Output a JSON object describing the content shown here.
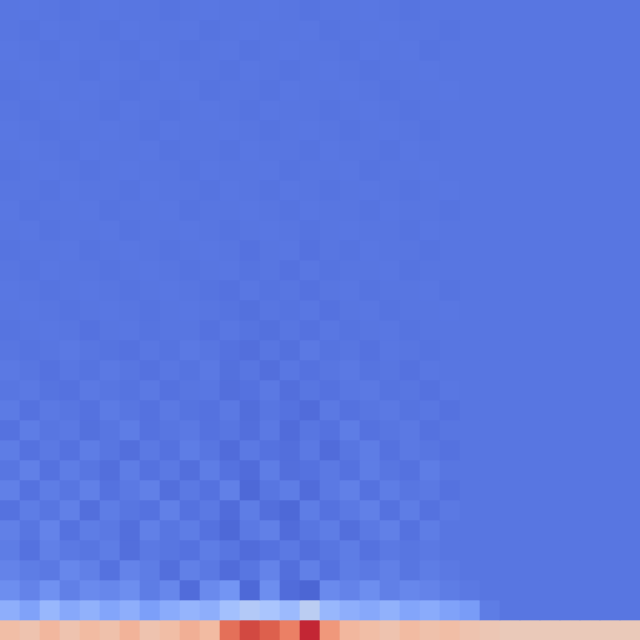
{
  "chart_data": {
    "type": "heatmap",
    "tick_labels": false,
    "color_range": [
      0,
      1
    ],
    "cells": [
      [
        0.13,
        0.135,
        0.13,
        0.125,
        0.13,
        0.135,
        0.13,
        0.13,
        0.125,
        0.13,
        0.135,
        0.13,
        0.13,
        0.135,
        0.13,
        0.125,
        0.13,
        0.13,
        0.135,
        0.13,
        0.125,
        0.13,
        0.13,
        0.13,
        0.13,
        0.13,
        0.13,
        0.13,
        0.13,
        0.13,
        0.13,
        0.13
      ],
      [
        0.13,
        0.125,
        0.135,
        0.13,
        0.13,
        0.125,
        0.135,
        0.13,
        0.13,
        0.135,
        0.125,
        0.13,
        0.135,
        0.13,
        0.13,
        0.135,
        0.125,
        0.13,
        0.13,
        0.135,
        0.13,
        0.13,
        0.125,
        0.13,
        0.13,
        0.13,
        0.13,
        0.13,
        0.13,
        0.13,
        0.13,
        0.13
      ],
      [
        0.135,
        0.13,
        0.125,
        0.135,
        0.13,
        0.13,
        0.125,
        0.135,
        0.13,
        0.125,
        0.13,
        0.135,
        0.125,
        0.13,
        0.135,
        0.13,
        0.13,
        0.125,
        0.135,
        0.13,
        0.135,
        0.125,
        0.13,
        0.13,
        0.13,
        0.13,
        0.13,
        0.13,
        0.13,
        0.13,
        0.13,
        0.13
      ],
      [
        0.13,
        0.135,
        0.13,
        0.13,
        0.125,
        0.135,
        0.13,
        0.125,
        0.135,
        0.13,
        0.13,
        0.125,
        0.135,
        0.13,
        0.125,
        0.13,
        0.135,
        0.13,
        0.125,
        0.13,
        0.13,
        0.135,
        0.13,
        0.13,
        0.13,
        0.13,
        0.13,
        0.13,
        0.13,
        0.13,
        0.13,
        0.13
      ],
      [
        0.125,
        0.13,
        0.135,
        0.13,
        0.135,
        0.13,
        0.125,
        0.13,
        0.13,
        0.135,
        0.125,
        0.13,
        0.13,
        0.125,
        0.135,
        0.13,
        0.13,
        0.135,
        0.13,
        0.125,
        0.13,
        0.13,
        0.135,
        0.13,
        0.13,
        0.13,
        0.13,
        0.13,
        0.13,
        0.13,
        0.13,
        0.13
      ],
      [
        0.13,
        0.125,
        0.13,
        0.135,
        0.13,
        0.125,
        0.135,
        0.13,
        0.125,
        0.13,
        0.135,
        0.13,
        0.125,
        0.135,
        0.13,
        0.13,
        0.125,
        0.13,
        0.135,
        0.13,
        0.125,
        0.13,
        0.13,
        0.13,
        0.13,
        0.13,
        0.13,
        0.13,
        0.13,
        0.13,
        0.13,
        0.13
      ],
      [
        0.135,
        0.13,
        0.125,
        0.13,
        0.13,
        0.135,
        0.13,
        0.125,
        0.135,
        0.13,
        0.13,
        0.135,
        0.13,
        0.125,
        0.13,
        0.135,
        0.13,
        0.125,
        0.13,
        0.135,
        0.13,
        0.125,
        0.13,
        0.13,
        0.13,
        0.13,
        0.13,
        0.13,
        0.13,
        0.13,
        0.13,
        0.13
      ],
      [
        0.13,
        0.135,
        0.13,
        0.125,
        0.135,
        0.13,
        0.13,
        0.135,
        0.125,
        0.13,
        0.13,
        0.125,
        0.135,
        0.13,
        0.13,
        0.125,
        0.135,
        0.13,
        0.13,
        0.125,
        0.135,
        0.13,
        0.13,
        0.13,
        0.13,
        0.13,
        0.13,
        0.13,
        0.13,
        0.13,
        0.13,
        0.13
      ],
      [
        0.125,
        0.13,
        0.135,
        0.13,
        0.125,
        0.13,
        0.135,
        0.13,
        0.13,
        0.125,
        0.135,
        0.13,
        0.13,
        0.135,
        0.125,
        0.13,
        0.13,
        0.135,
        0.125,
        0.13,
        0.13,
        0.135,
        0.13,
        0.13,
        0.13,
        0.13,
        0.13,
        0.13,
        0.13,
        0.13,
        0.13,
        0.13
      ],
      [
        0.13,
        0.13,
        0.125,
        0.135,
        0.13,
        0.13,
        0.125,
        0.135,
        0.13,
        0.13,
        0.125,
        0.135,
        0.13,
        0.125,
        0.135,
        0.13,
        0.125,
        0.13,
        0.135,
        0.13,
        0.125,
        0.13,
        0.135,
        0.13,
        0.13,
        0.13,
        0.13,
        0.13,
        0.13,
        0.13,
        0.13,
        0.13
      ],
      [
        0.135,
        0.125,
        0.13,
        0.13,
        0.135,
        0.125,
        0.13,
        0.13,
        0.135,
        0.125,
        0.13,
        0.13,
        0.135,
        0.13,
        0.125,
        0.135,
        0.13,
        0.13,
        0.125,
        0.135,
        0.13,
        0.13,
        0.125,
        0.13,
        0.13,
        0.13,
        0.13,
        0.13,
        0.13,
        0.13,
        0.13,
        0.13
      ],
      [
        0.13,
        0.135,
        0.125,
        0.13,
        0.13,
        0.135,
        0.125,
        0.13,
        0.13,
        0.135,
        0.13,
        0.125,
        0.13,
        0.135,
        0.13,
        0.125,
        0.13,
        0.135,
        0.13,
        0.13,
        0.125,
        0.135,
        0.13,
        0.13,
        0.13,
        0.13,
        0.13,
        0.13,
        0.13,
        0.13,
        0.13,
        0.13
      ],
      [
        0.125,
        0.13,
        0.13,
        0.135,
        0.125,
        0.13,
        0.135,
        0.13,
        0.125,
        0.13,
        0.135,
        0.13,
        0.12,
        0.13,
        0.135,
        0.12,
        0.13,
        0.125,
        0.135,
        0.13,
        0.13,
        0.125,
        0.13,
        0.13,
        0.13,
        0.13,
        0.13,
        0.13,
        0.13,
        0.13,
        0.13,
        0.13
      ],
      [
        0.13,
        0.125,
        0.135,
        0.13,
        0.13,
        0.125,
        0.13,
        0.135,
        0.13,
        0.125,
        0.13,
        0.135,
        0.125,
        0.13,
        0.12,
        0.135,
        0.125,
        0.13,
        0.13,
        0.135,
        0.125,
        0.13,
        0.13,
        0.13,
        0.13,
        0.13,
        0.13,
        0.13,
        0.13,
        0.13,
        0.13,
        0.13
      ],
      [
        0.135,
        0.13,
        0.125,
        0.13,
        0.135,
        0.13,
        0.125,
        0.13,
        0.135,
        0.13,
        0.125,
        0.12,
        0.135,
        0.125,
        0.13,
        0.12,
        0.13,
        0.135,
        0.125,
        0.13,
        0.13,
        0.135,
        0.125,
        0.13,
        0.13,
        0.13,
        0.13,
        0.13,
        0.13,
        0.13,
        0.13,
        0.13
      ],
      [
        0.13,
        0.135,
        0.13,
        0.125,
        0.13,
        0.135,
        0.13,
        0.125,
        0.13,
        0.135,
        0.13,
        0.125,
        0.115,
        0.13,
        0.125,
        0.135,
        0.12,
        0.13,
        0.135,
        0.125,
        0.13,
        0.13,
        0.135,
        0.13,
        0.13,
        0.13,
        0.13,
        0.13,
        0.13,
        0.13,
        0.13,
        0.13
      ],
      [
        0.125,
        0.13,
        0.135,
        0.13,
        0.12,
        0.13,
        0.135,
        0.125,
        0.13,
        0.13,
        0.12,
        0.135,
        0.125,
        0.115,
        0.13,
        0.12,
        0.135,
        0.125,
        0.13,
        0.135,
        0.125,
        0.13,
        0.13,
        0.13,
        0.13,
        0.13,
        0.13,
        0.13,
        0.13,
        0.13,
        0.13,
        0.13
      ],
      [
        0.13,
        0.125,
        0.13,
        0.14,
        0.13,
        0.125,
        0.12,
        0.135,
        0.125,
        0.14,
        0.13,
        0.12,
        0.11,
        0.13,
        0.115,
        0.14,
        0.125,
        0.13,
        0.12,
        0.135,
        0.13,
        0.125,
        0.13,
        0.13,
        0.13,
        0.13,
        0.13,
        0.13,
        0.13,
        0.13,
        0.13,
        0.13
      ],
      [
        0.14,
        0.13,
        0.12,
        0.135,
        0.125,
        0.14,
        0.13,
        0.12,
        0.135,
        0.125,
        0.14,
        0.115,
        0.13,
        0.11,
        0.135,
        0.12,
        0.13,
        0.14,
        0.125,
        0.13,
        0.12,
        0.135,
        0.13,
        0.13,
        0.13,
        0.13,
        0.13,
        0.13,
        0.13,
        0.13,
        0.13,
        0.13
      ],
      [
        0.13,
        0.14,
        0.125,
        0.12,
        0.14,
        0.13,
        0.125,
        0.14,
        0.12,
        0.13,
        0.135,
        0.11,
        0.12,
        0.14,
        0.11,
        0.13,
        0.12,
        0.135,
        0.14,
        0.125,
        0.13,
        0.12,
        0.135,
        0.13,
        0.13,
        0.13,
        0.13,
        0.13,
        0.13,
        0.13,
        0.13,
        0.13
      ],
      [
        0.145,
        0.12,
        0.14,
        0.13,
        0.12,
        0.145,
        0.13,
        0.12,
        0.14,
        0.125,
        0.12,
        0.14,
        0.105,
        0.13,
        0.12,
        0.1,
        0.14,
        0.12,
        0.13,
        0.14,
        0.125,
        0.135,
        0.12,
        0.13,
        0.13,
        0.13,
        0.13,
        0.13,
        0.13,
        0.13,
        0.13,
        0.13
      ],
      [
        0.12,
        0.15,
        0.13,
        0.14,
        0.115,
        0.13,
        0.15,
        0.12,
        0.13,
        0.14,
        0.12,
        0.13,
        0.11,
        0.14,
        0.1,
        0.13,
        0.12,
        0.15,
        0.12,
        0.13,
        0.14,
        0.12,
        0.13,
        0.13,
        0.13,
        0.13,
        0.13,
        0.13,
        0.13,
        0.13,
        0.13,
        0.13
      ],
      [
        0.15,
        0.12,
        0.14,
        0.12,
        0.15,
        0.13,
        0.11,
        0.14,
        0.12,
        0.15,
        0.13,
        0.1,
        0.14,
        0.12,
        0.11,
        0.14,
        0.1,
        0.13,
        0.15,
        0.12,
        0.14,
        0.13,
        0.12,
        0.13,
        0.13,
        0.13,
        0.13,
        0.13,
        0.13,
        0.13,
        0.13,
        0.13
      ],
      [
        0.13,
        0.16,
        0.12,
        0.15,
        0.13,
        0.11,
        0.15,
        0.12,
        0.14,
        0.11,
        0.15,
        0.12,
        0.1,
        0.15,
        0.11,
        0.12,
        0.14,
        0.12,
        0.15,
        0.13,
        0.12,
        0.15,
        0.13,
        0.13,
        0.13,
        0.13,
        0.13,
        0.13,
        0.13,
        0.13,
        0.13,
        0.13
      ],
      [
        0.16,
        0.12,
        0.15,
        0.13,
        0.16,
        0.12,
        0.14,
        0.16,
        0.11,
        0.14,
        0.12,
        0.16,
        0.09,
        0.13,
        0.15,
        0.1,
        0.14,
        0.16,
        0.12,
        0.15,
        0.13,
        0.14,
        0.12,
        0.13,
        0.13,
        0.13,
        0.13,
        0.13,
        0.13,
        0.13,
        0.13,
        0.13
      ],
      [
        0.12,
        0.15,
        0.13,
        0.16,
        0.11,
        0.15,
        0.13,
        0.12,
        0.16,
        0.12,
        0.14,
        0.1,
        0.15,
        0.11,
        0.09,
        0.15,
        0.12,
        0.14,
        0.16,
        0.12,
        0.15,
        0.12,
        0.14,
        0.13,
        0.13,
        0.13,
        0.13,
        0.13,
        0.13,
        0.13,
        0.13,
        0.13
      ],
      [
        0.16,
        0.13,
        0.17,
        0.12,
        0.15,
        0.14,
        0.11,
        0.16,
        0.13,
        0.15,
        0.12,
        0.09,
        0.14,
        0.16,
        0.1,
        0.13,
        0.15,
        0.11,
        0.14,
        0.16,
        0.12,
        0.15,
        0.13,
        0.13,
        0.13,
        0.13,
        0.13,
        0.13,
        0.13,
        0.13,
        0.13,
        0.13
      ],
      [
        0.15,
        0.12,
        0.16,
        0.14,
        0.13,
        0.15,
        0.11,
        0.14,
        0.13,
        0.12,
        0.15,
        0.13,
        0.1,
        0.12,
        0.14,
        0.11,
        0.13,
        0.15,
        0.12,
        0.14,
        0.13,
        0.14,
        0.13,
        0.13,
        0.13,
        0.13,
        0.13,
        0.13,
        0.13,
        0.13,
        0.13,
        0.13
      ],
      [
        0.17,
        0.15,
        0.14,
        0.18,
        0.16,
        0.12,
        0.17,
        0.15,
        0.11,
        0.16,
        0.14,
        0.1,
        0.13,
        0.17,
        0.11,
        0.16,
        0.12,
        0.15,
        0.14,
        0.16,
        0.13,
        0.15,
        0.14,
        0.13,
        0.13,
        0.13,
        0.13,
        0.13,
        0.13,
        0.13,
        0.13,
        0.13
      ],
      [
        0.2,
        0.17,
        0.21,
        0.16,
        0.19,
        0.18,
        0.2,
        0.15,
        0.18,
        0.1,
        0.19,
        0.22,
        0.09,
        0.2,
        0.1,
        0.08,
        0.19,
        0.17,
        0.2,
        0.16,
        0.18,
        0.17,
        0.15,
        0.14,
        0.13,
        0.13,
        0.13,
        0.13,
        0.13,
        0.13,
        0.13,
        0.13
      ],
      [
        0.3,
        0.26,
        0.33,
        0.28,
        0.31,
        0.27,
        0.3,
        0.25,
        0.29,
        0.32,
        0.3,
        0.36,
        0.4,
        0.38,
        0.34,
        0.42,
        0.33,
        0.3,
        0.28,
        0.31,
        0.27,
        0.29,
        0.26,
        0.24,
        0.15,
        0.13,
        0.13,
        0.13,
        0.13,
        0.13,
        0.13,
        0.13
      ],
      [
        0.62,
        0.6,
        0.64,
        0.6,
        0.63,
        0.61,
        0.65,
        0.6,
        0.62,
        0.66,
        0.63,
        0.82,
        0.9,
        0.86,
        0.78,
        0.95,
        0.72,
        0.64,
        0.62,
        0.6,
        0.63,
        0.61,
        0.62,
        0.6,
        0.59,
        0.58,
        0.58,
        0.58,
        0.58,
        0.58,
        0.58,
        0.58
      ]
    ]
  }
}
